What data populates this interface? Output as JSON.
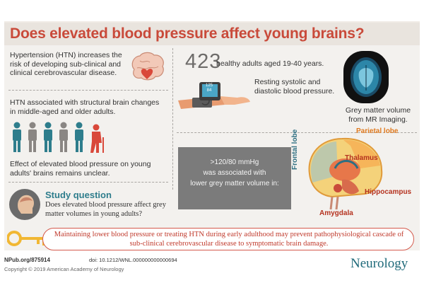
{
  "title": "Does elevated blood pressure affect young brains?",
  "left_panel": {
    "htn_risk": "Hypertension (HTN) increases the risk of developing sub-clinical and clinical cerebrovascular disease.",
    "htn_structural": "HTN associated with structural brain changes in middle-aged and older adults.",
    "htn_unclear": "Effect of elevated blood pressure on young adults' brains remains unclear."
  },
  "study": {
    "count": "423",
    "participants": "healthy adults aged 19-40 years.",
    "bp_measure": "Resting systolic and diastolic blood pressure.",
    "bp_monitor_sys": "125",
    "bp_monitor_dia": "84",
    "mri": "Grey matter volume from MR Imaging."
  },
  "finding": {
    "line1": ">120/80 mmHg",
    "line2": "was associated with",
    "line3": "lower grey matter volume in:"
  },
  "brain_regions": {
    "parietal": "Parietal lobe",
    "thalamus": "Thalamus",
    "frontal": "Frontal lobe",
    "hippocampus": "Hippocampus",
    "amygdala": "Amygdala"
  },
  "study_question": {
    "title": "Study question",
    "text": "Does elevated blood pressure affect grey matter volumes in young adults?"
  },
  "conclusion": "Maintaining lower blood pressure or treating HTN during early adulthood may prevent pathophysiological cascade of sub-clinical cerebrovascular disease to symptomatic brain damage.",
  "footer": {
    "site": "NPub.org/875914",
    "copyright": "Copyright © 2019 American Academy of Neurology",
    "doi": "doi: 10.1212/WNL.000000000000694",
    "brand": "Neurology"
  },
  "icons": {
    "brain_heart": "brain-icon",
    "bp_cuff": "blood-pressure-cuff-icon",
    "mri": "mri-scan-icon",
    "people": "people-icon",
    "head_question": "head-question-icon",
    "key": "key-icon"
  },
  "colors": {
    "title_red": "#c94a3a",
    "teal": "#2e7d8c",
    "gray": "#7b7b7b",
    "orange": "#e07a1f"
  }
}
